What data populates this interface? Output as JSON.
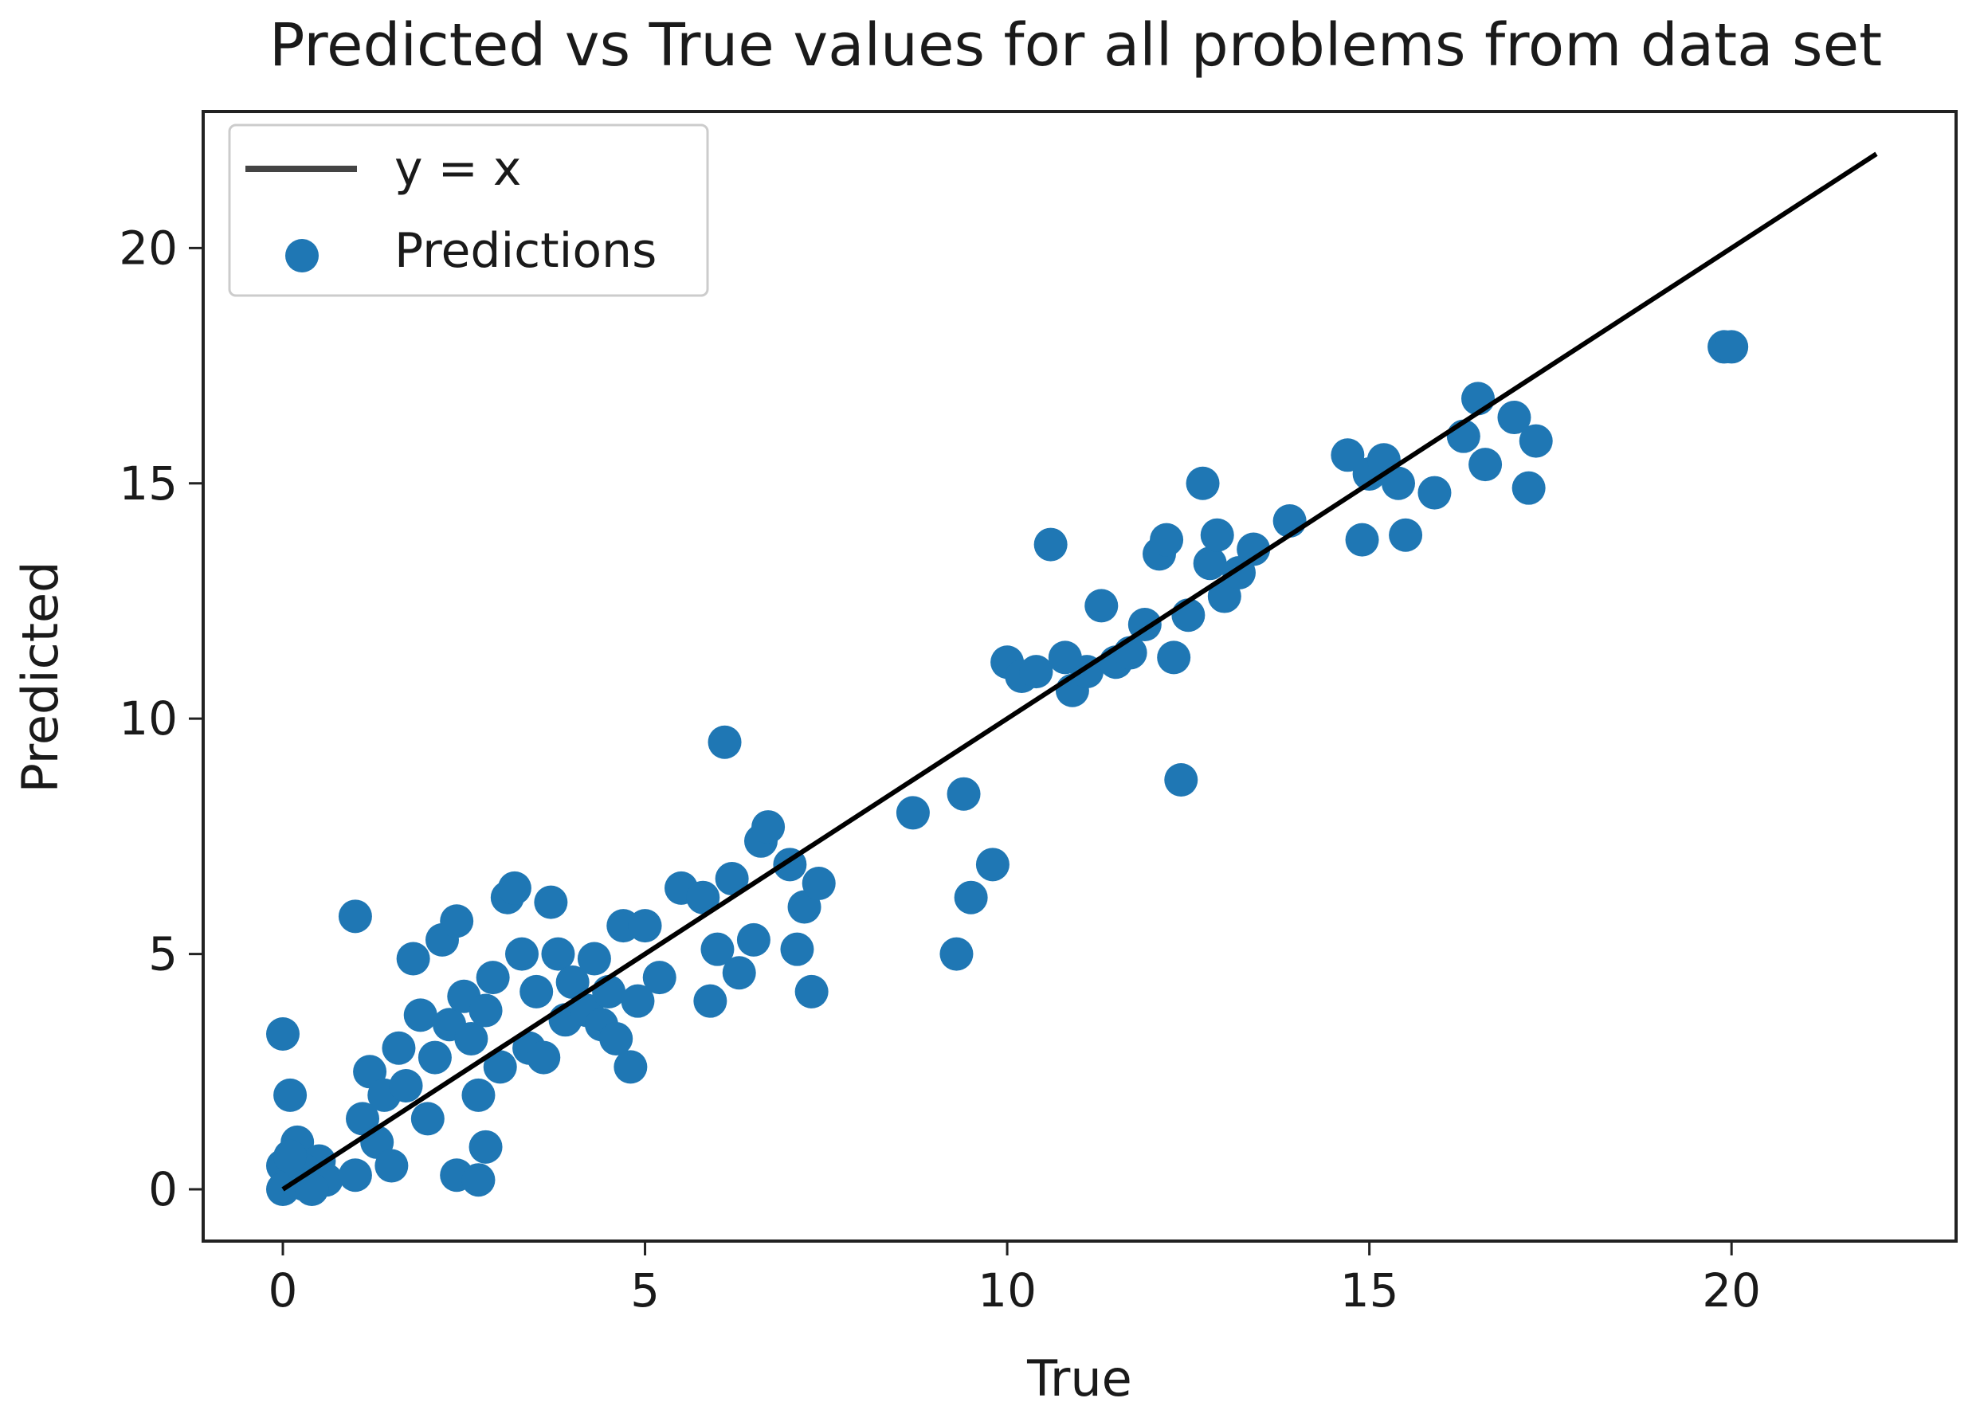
{
  "chart_data": {
    "type": "scatter",
    "title": "Predicted vs True values for all problems from data set",
    "xlabel": "True",
    "ylabel": "Predicted",
    "xlim": [
      -1.1,
      23.1
    ],
    "ylim": [
      -1.1,
      22.9
    ],
    "xticks": [
      0,
      5,
      10,
      15,
      20
    ],
    "yticks": [
      0,
      5,
      10,
      15,
      20
    ],
    "grid": false,
    "legend_position": "top-left",
    "colors": {
      "points": "#1f77b4",
      "line": "#000000",
      "legend_line": "#444444"
    },
    "series": [
      {
        "name": "y = x",
        "kind": "line",
        "x": [
          0,
          22
        ],
        "y": [
          0,
          22
        ]
      },
      {
        "name": "Predictions",
        "kind": "scatter",
        "points": [
          [
            0,
            3.3
          ],
          [
            0.1,
            2.0
          ],
          [
            0,
            0.5
          ],
          [
            0.1,
            0.2
          ],
          [
            0.2,
            0.8
          ],
          [
            0.3,
            0.1
          ],
          [
            0.4,
            0.3
          ],
          [
            0.2,
            1.0
          ],
          [
            0,
            0.0
          ],
          [
            0.5,
            0.6
          ],
          [
            0.3,
            0.4
          ],
          [
            0.1,
            0.7
          ],
          [
            0.6,
            0.2
          ],
          [
            0.4,
            0.0
          ],
          [
            1.0,
            5.8
          ],
          [
            1.0,
            0.3
          ],
          [
            1.2,
            2.5
          ],
          [
            1.1,
            1.5
          ],
          [
            1.3,
            1.0
          ],
          [
            1.4,
            2.0
          ],
          [
            1.5,
            0.5
          ],
          [
            1.6,
            3.0
          ],
          [
            1.7,
            2.2
          ],
          [
            1.8,
            4.9
          ],
          [
            1.9,
            3.7
          ],
          [
            2.0,
            1.5
          ],
          [
            2.1,
            2.8
          ],
          [
            2.2,
            5.3
          ],
          [
            2.3,
            3.5
          ],
          [
            2.4,
            0.3
          ],
          [
            2.4,
            5.7
          ],
          [
            2.5,
            4.1
          ],
          [
            2.6,
            3.2
          ],
          [
            2.7,
            2.0
          ],
          [
            2.7,
            0.2
          ],
          [
            2.8,
            0.9
          ],
          [
            2.8,
            3.8
          ],
          [
            2.9,
            4.5
          ],
          [
            3.0,
            2.6
          ],
          [
            3.1,
            6.2
          ],
          [
            3.2,
            6.4
          ],
          [
            3.3,
            5.0
          ],
          [
            3.4,
            3.0
          ],
          [
            3.5,
            4.2
          ],
          [
            3.6,
            2.8
          ],
          [
            3.7,
            6.1
          ],
          [
            3.8,
            5.0
          ],
          [
            3.9,
            3.6
          ],
          [
            4.0,
            4.4
          ],
          [
            4.2,
            3.8
          ],
          [
            4.3,
            4.9
          ],
          [
            4.4,
            3.5
          ],
          [
            4.5,
            4.2
          ],
          [
            4.6,
            3.2
          ],
          [
            4.7,
            5.6
          ],
          [
            4.8,
            2.6
          ],
          [
            4.9,
            4.0
          ],
          [
            5.0,
            5.6
          ],
          [
            5.2,
            4.5
          ],
          [
            5.5,
            6.4
          ],
          [
            5.8,
            6.2
          ],
          [
            5.9,
            4.0
          ],
          [
            6.0,
            5.1
          ],
          [
            6.1,
            9.5
          ],
          [
            6.2,
            6.6
          ],
          [
            6.3,
            4.6
          ],
          [
            6.5,
            5.3
          ],
          [
            6.6,
            7.4
          ],
          [
            6.7,
            7.7
          ],
          [
            7.0,
            6.9
          ],
          [
            7.1,
            5.1
          ],
          [
            7.2,
            6.0
          ],
          [
            7.3,
            4.2
          ],
          [
            7.4,
            6.5
          ],
          [
            8.7,
            8.0
          ],
          [
            9.3,
            5.0
          ],
          [
            9.4,
            8.4
          ],
          [
            9.5,
            6.2
          ],
          [
            9.8,
            6.9
          ],
          [
            10.0,
            11.2
          ],
          [
            10.2,
            10.9
          ],
          [
            10.4,
            11.0
          ],
          [
            10.6,
            13.7
          ],
          [
            10.8,
            11.3
          ],
          [
            10.9,
            10.6
          ],
          [
            11.1,
            11.0
          ],
          [
            11.3,
            12.4
          ],
          [
            11.5,
            11.2
          ],
          [
            11.7,
            11.4
          ],
          [
            11.9,
            12.0
          ],
          [
            12.1,
            13.5
          ],
          [
            12.2,
            13.8
          ],
          [
            12.3,
            11.3
          ],
          [
            12.4,
            8.7
          ],
          [
            12.5,
            12.2
          ],
          [
            12.7,
            15.0
          ],
          [
            12.8,
            13.3
          ],
          [
            12.9,
            13.9
          ],
          [
            13.0,
            12.6
          ],
          [
            13.2,
            13.1
          ],
          [
            13.4,
            13.6
          ],
          [
            13.9,
            14.2
          ],
          [
            14.7,
            15.6
          ],
          [
            14.9,
            13.8
          ],
          [
            15.0,
            15.2
          ],
          [
            15.2,
            15.5
          ],
          [
            15.4,
            15.0
          ],
          [
            15.5,
            13.9
          ],
          [
            15.9,
            14.8
          ],
          [
            16.3,
            16.0
          ],
          [
            16.5,
            16.8
          ],
          [
            16.6,
            15.4
          ],
          [
            17.0,
            16.4
          ],
          [
            17.2,
            14.9
          ],
          [
            17.3,
            15.9
          ],
          [
            19.9,
            17.9
          ],
          [
            20.0,
            17.9
          ]
        ]
      }
    ]
  }
}
